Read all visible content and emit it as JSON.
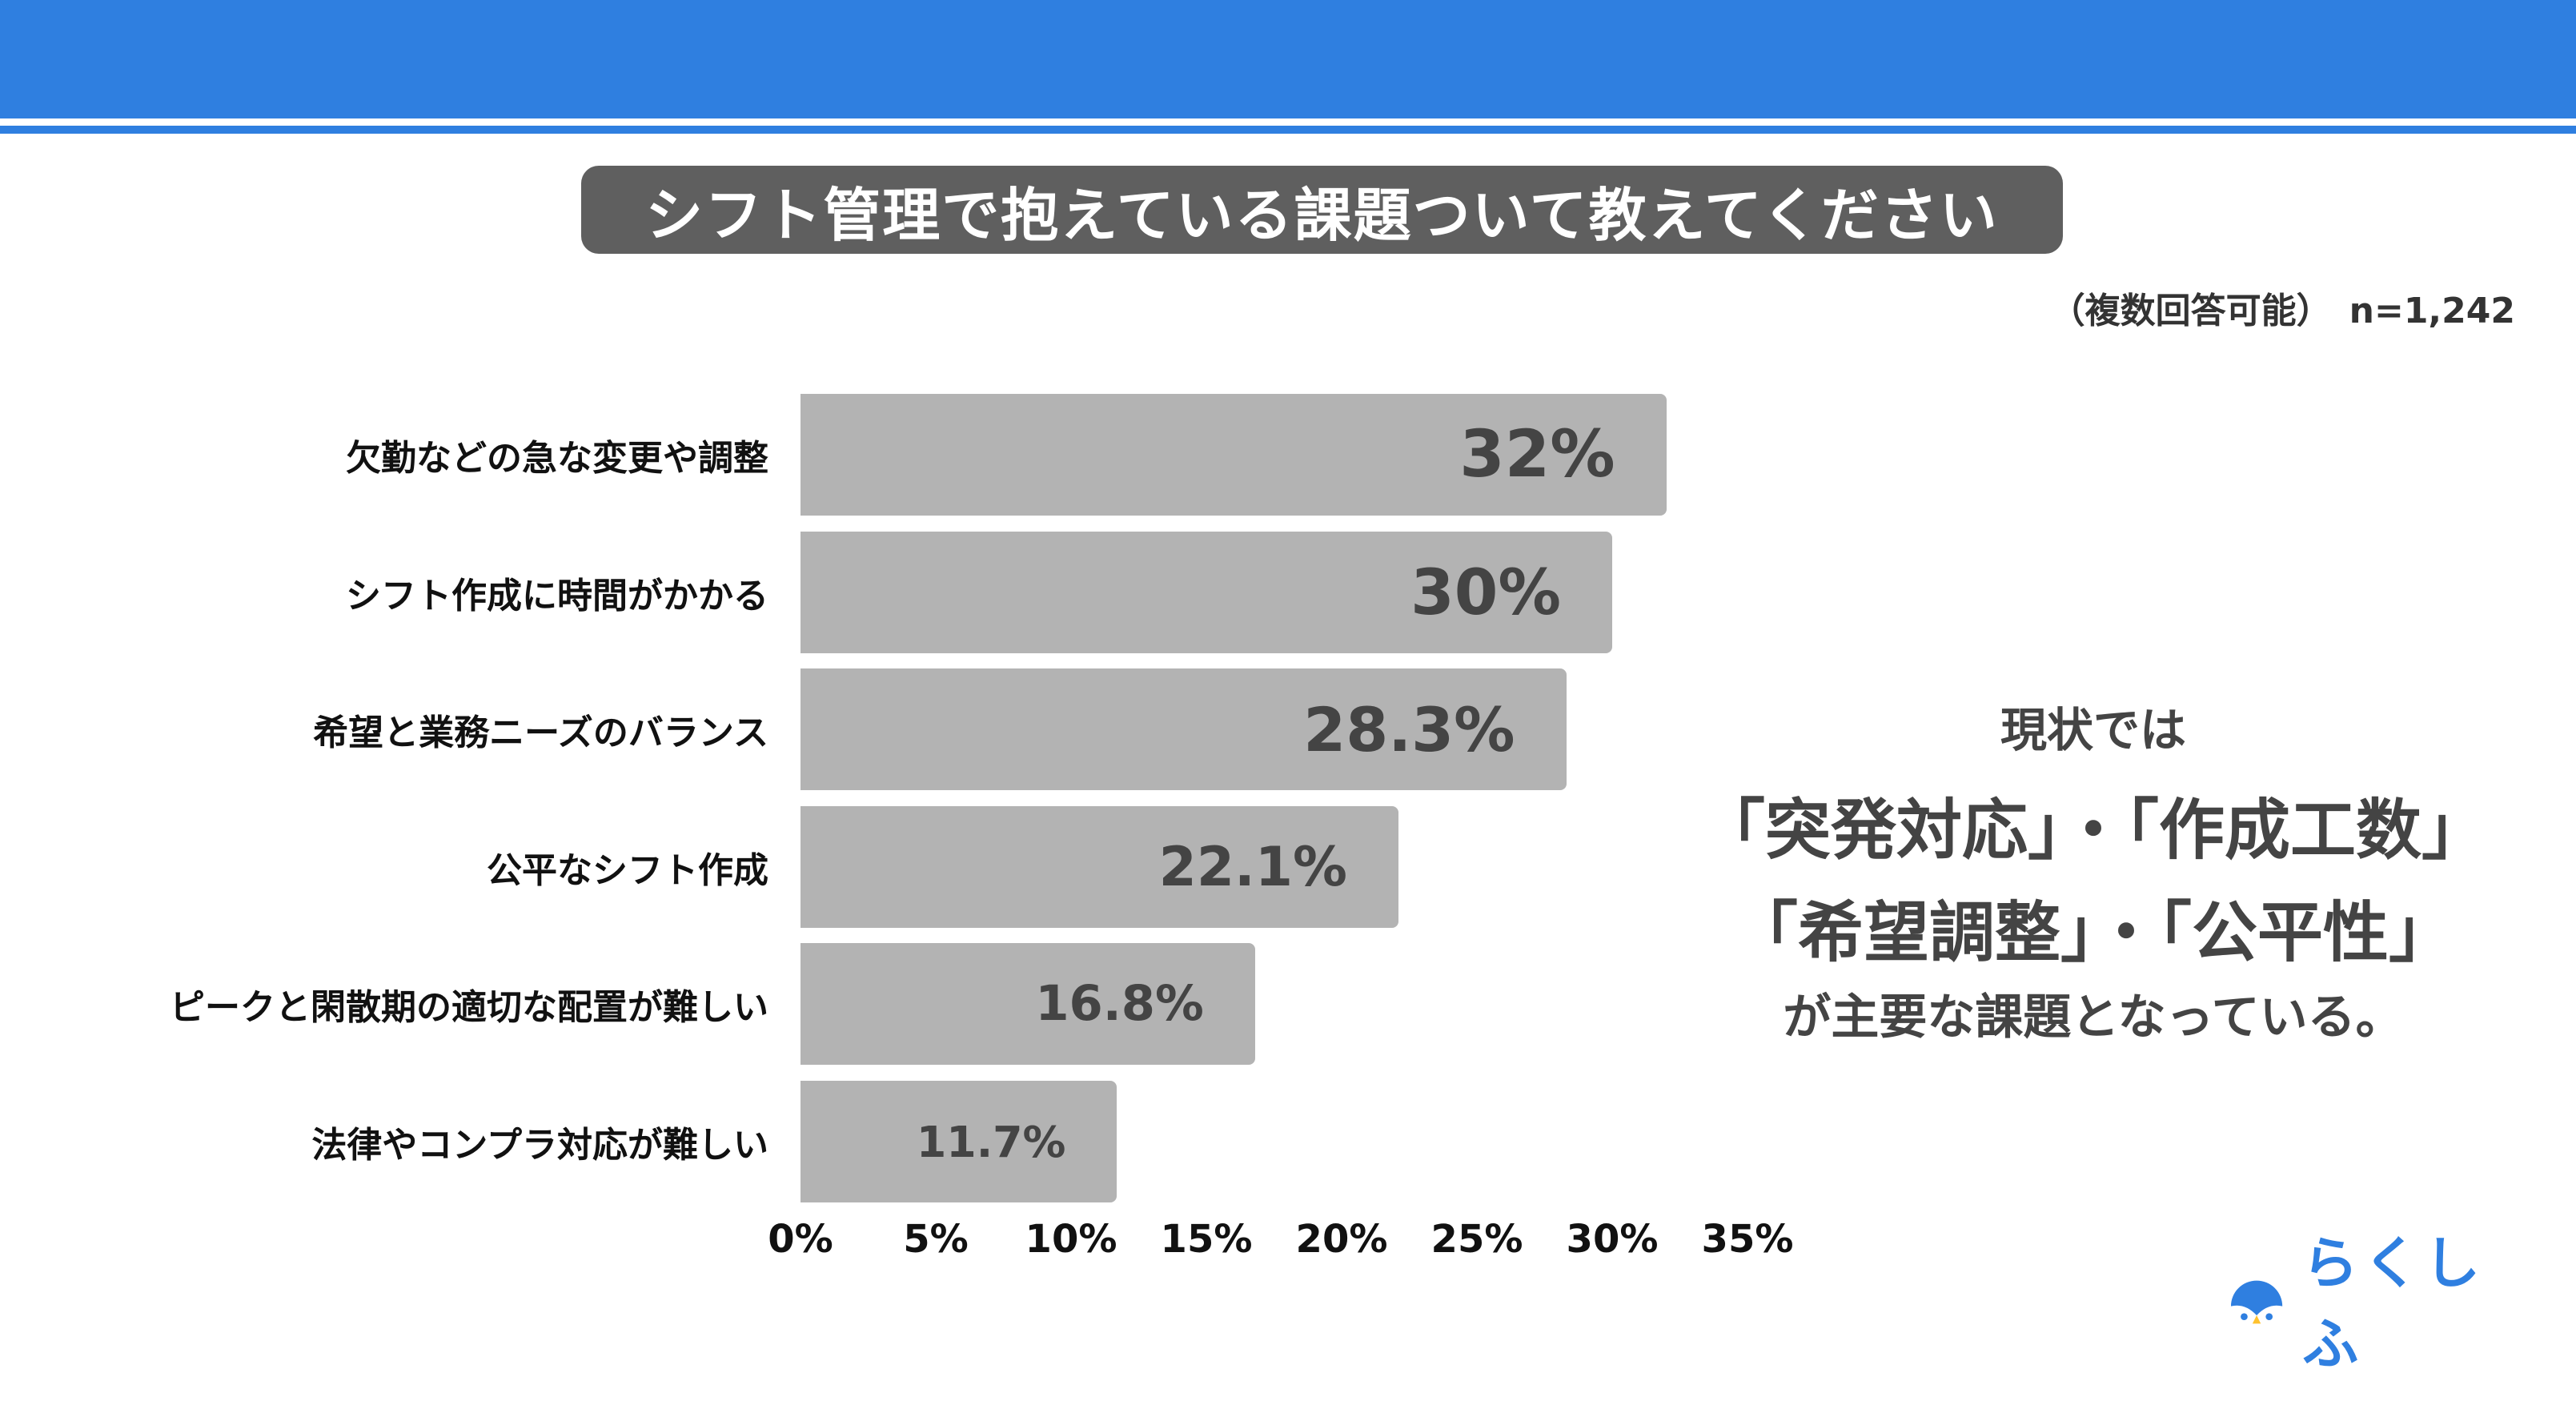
{
  "header": {
    "brand_color": "#2f7fe0"
  },
  "title": "シフト管理で抱えている課題ついて教えてください",
  "note": "（複数回答可能）　n=1,242",
  "chart_data": {
    "type": "bar",
    "orientation": "horizontal",
    "categories": [
      "欠勤などの急な変更や調整",
      "シフト作成に時間がかかる",
      "希望と業務ニーズのバランス",
      "公平なシフト作成",
      "ピークと閑散期の適切な配置が難しい",
      "法律やコンプラ対応が難しい"
    ],
    "values": [
      32,
      30,
      28.3,
      22.1,
      16.8,
      11.7
    ],
    "value_labels": [
      "32%",
      "30%",
      "28.3%",
      "22.1%",
      "16.8%",
      "11.7%"
    ],
    "xlim": [
      0,
      35
    ],
    "x_ticks": [
      "0%",
      "5%",
      "10%",
      "15%",
      "20%",
      "25%",
      "30%",
      "35%"
    ],
    "x_tick_values": [
      0,
      5,
      10,
      15,
      20,
      25,
      30,
      35
    ],
    "grid": false,
    "bar_color": "#b3b3b3"
  },
  "annotation": {
    "line1": "現状では",
    "line2": "「突発対応」・「作成工数」",
    "line3": "「希望調整」・「公平性」",
    "line4": "が主要な課題となっている。"
  },
  "logo": {
    "text": "らくしふ",
    "color": "#2f7fe0",
    "accent": "#ffc22e"
  }
}
